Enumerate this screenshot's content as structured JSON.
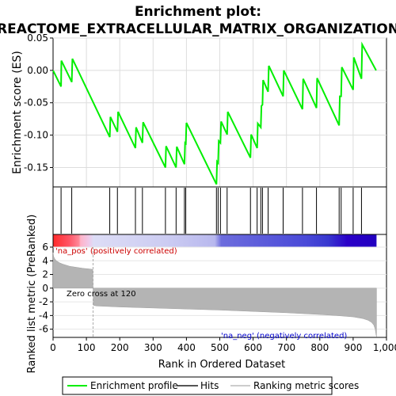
{
  "chart_data": [
    {
      "type": "line",
      "title": "Enrichment plot:",
      "subtitle": "REACTOME_EXTRACELLULAR_MATRIX_ORGANIZATION",
      "ylabel": "Enrichment score (ES)",
      "ylim": [
        -0.18,
        0.05
      ],
      "yticks": [
        "0.05",
        "0.00",
        "-0.05",
        "-0.10",
        "-0.15"
      ],
      "ytick_values": [
        0.05,
        0.0,
        -0.05,
        -0.1,
        -0.15
      ],
      "xlim": [
        0,
        1000
      ],
      "grid": true,
      "series": [
        {
          "name": "Enrichment profile",
          "color": "#00ee00",
          "x": [
            0,
            24,
            25,
            56,
            58,
            170,
            172,
            193,
            195,
            247,
            249,
            268,
            270,
            337,
            339,
            369,
            371,
            394,
            396,
            398,
            400,
            490,
            492,
            495,
            497,
            502,
            504,
            522,
            524,
            592,
            594,
            612,
            614,
            623,
            625,
            628,
            630,
            645,
            647,
            690,
            692,
            748,
            750,
            790,
            792,
            858,
            860,
            864,
            866,
            900,
            902,
            925,
            927,
            969
          ],
          "y": [
            0.0,
            -0.025,
            0.015,
            -0.018,
            0.018,
            -0.103,
            -0.072,
            -0.095,
            -0.064,
            -0.12,
            -0.088,
            -0.112,
            -0.08,
            -0.15,
            -0.117,
            -0.15,
            -0.118,
            -0.145,
            -0.112,
            -0.113,
            -0.081,
            -0.176,
            -0.141,
            -0.143,
            -0.109,
            -0.112,
            -0.079,
            -0.099,
            -0.064,
            -0.135,
            -0.099,
            -0.12,
            -0.082,
            -0.088,
            -0.055,
            -0.053,
            -0.015,
            -0.033,
            0.007,
            -0.04,
            0.0,
            -0.06,
            -0.013,
            -0.058,
            -0.012,
            -0.085,
            -0.04,
            -0.04,
            0.005,
            -0.03,
            0.02,
            -0.013,
            0.04,
            0.0
          ]
        }
      ]
    },
    {
      "type": "hits",
      "hit_positions": [
        24,
        56,
        170,
        193,
        247,
        268,
        337,
        369,
        394,
        398,
        490,
        495,
        502,
        522,
        592,
        612,
        623,
        628,
        645,
        690,
        748,
        790,
        858,
        864,
        900,
        925
      ]
    },
    {
      "type": "area",
      "ylabel": "Ranked list metric (PreRanked)",
      "xlabel": "Rank in Ordered Dataset",
      "ylim": [
        -7.2,
        6
      ],
      "yticks": [
        "6",
        "4",
        "2",
        "0",
        "-2",
        "-4",
        "-6"
      ],
      "ytick_values": [
        6,
        4,
        2,
        0,
        -2,
        -4,
        -6
      ],
      "xticks": [
        "0",
        "100",
        "200",
        "300",
        "400",
        "500",
        "600",
        "700",
        "800",
        "900",
        "1,000"
      ],
      "xtick_values": [
        0,
        100,
        200,
        300,
        400,
        500,
        600,
        700,
        800,
        900,
        1000
      ],
      "zero_cross": 120,
      "x": [
        0,
        2,
        5,
        10,
        20,
        30,
        50,
        70,
        90,
        110,
        119,
        120,
        121,
        130,
        200,
        300,
        400,
        500,
        600,
        700,
        800,
        850,
        900,
        930,
        945,
        955,
        962,
        966,
        969,
        970
      ],
      "y": [
        5.2,
        4.6,
        4.3,
        4.0,
        3.7,
        3.5,
        3.2,
        3.05,
        2.9,
        2.8,
        2.75,
        0.0,
        -2.5,
        -2.6,
        -2.75,
        -2.9,
        -3.05,
        -3.2,
        -3.4,
        -3.6,
        -3.85,
        -4.0,
        -4.2,
        -4.45,
        -4.7,
        -5.0,
        -5.4,
        -6.0,
        -6.9,
        -7.1
      ],
      "annotations": [
        "'na_pos' (positively correlated)",
        "Zero cross at 120",
        "'na_neg' (negatively correlated)"
      ]
    }
  ],
  "legend": {
    "items": [
      "Enrichment profile",
      "Hits",
      "Ranking metric scores"
    ],
    "colors": [
      "#00ee00",
      "#555555",
      "#cccccc"
    ]
  }
}
